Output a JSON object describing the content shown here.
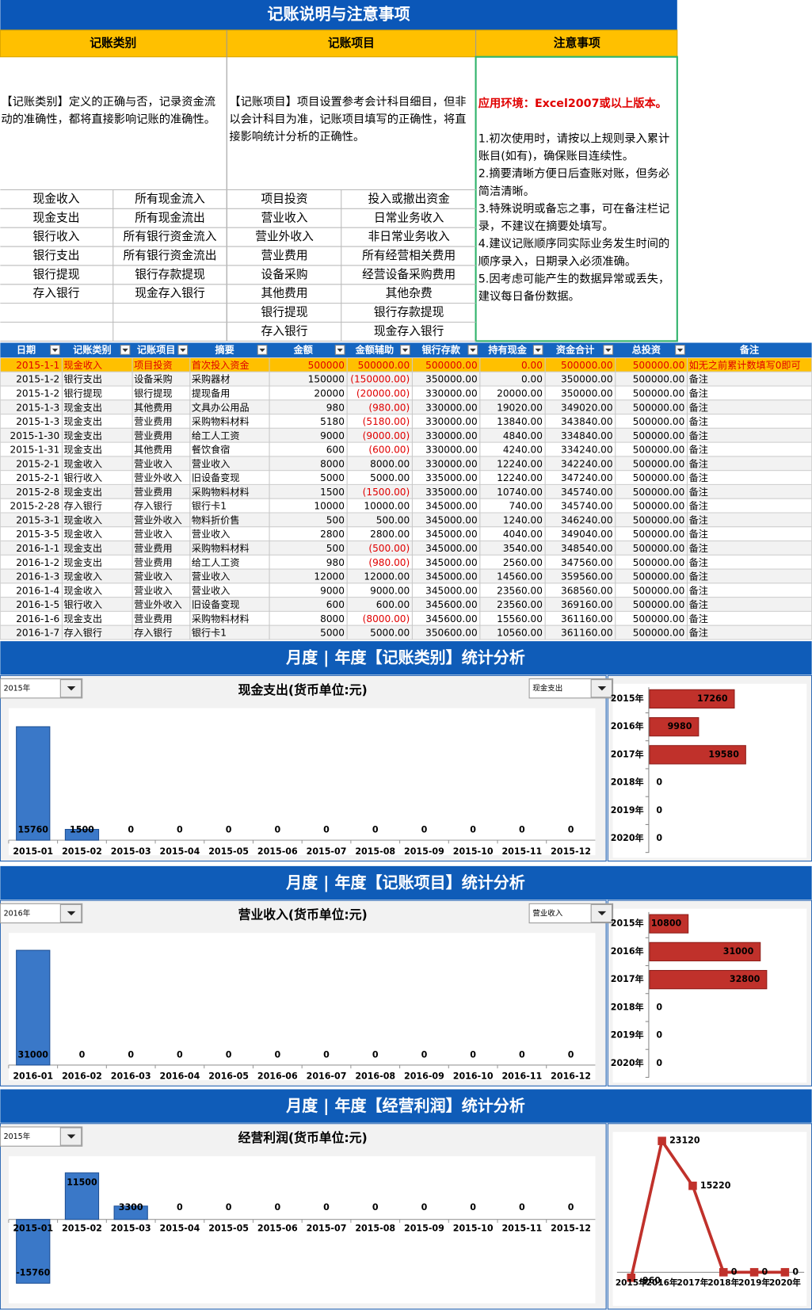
{
  "header": {
    "title": "记账说明与注意事项",
    "columns": [
      "记账类别",
      "记账项目",
      "注意事项"
    ]
  },
  "descriptions": [
    "【记账类别】定义的正确与否，记录资金流动的准确性，都将直接影响记账的准确性。",
    "【记账项目】项目设置参考会计科目细目，但非以会计科目为准，记账项目填写的正确性，将直接影响统计分析的正确性。"
  ],
  "notes": {
    "environment": "应用环境：Excel2007或以上版本。",
    "items": [
      "1.初次使用时，请按以上规则录入累计账目(如有)，确保账目连续性。",
      "2.摘要清晰方便日后查账对账，但务必简洁清晰。",
      "3.特殊说明或备忘之事，可在备注栏记录，不建议在摘要处填写。",
      "4.建议记账顺序同实际业务发生时间的顺序录入，日期录入必须准确。",
      "5.因考虑可能产生的数据异常或丢失，建议每日备份数据。"
    ]
  },
  "categories": [
    [
      "现金收入",
      "所有现金流入"
    ],
    [
      "现金支出",
      "所有现金流出"
    ],
    [
      "银行收入",
      "所有银行资金流入"
    ],
    [
      "银行支出",
      "所有银行资金流出"
    ],
    [
      "银行提现",
      "银行存款提现"
    ],
    [
      "存入银行",
      "现金存入银行"
    ]
  ],
  "items": [
    [
      "项目投资",
      "投入或撤出资金"
    ],
    [
      "营业收入",
      "日常业务收入"
    ],
    [
      "营业外收入",
      "非日常业务收入"
    ],
    [
      "营业费用",
      "所有经营相关费用"
    ],
    [
      "设备采购",
      "经营设备采购费用"
    ],
    [
      "其他费用",
      "其他杂费"
    ],
    [
      "银行提现",
      "银行存款提现"
    ],
    [
      "存入银行",
      "现金存入银行"
    ]
  ],
  "ledger": {
    "columns": [
      "日期",
      "记账类别",
      "记账项目",
      "摘要",
      "金额",
      "金额辅助",
      "银行存款",
      "持有现金",
      "资金合计",
      "总投资",
      "备注"
    ],
    "rows": [
      [
        "2015-1-1",
        "现金收入",
        "项目投资",
        "首次投入资金",
        "500000",
        "500000.00",
        "500000.00",
        "0.00",
        "500000.00",
        "500000.00",
        "如无之前累计数填写0即可"
      ],
      [
        "2015-1-2",
        "银行支出",
        "设备采购",
        "采购器材",
        "150000",
        "(150000.00)",
        "350000.00",
        "0.00",
        "350000.00",
        "500000.00",
        "备注"
      ],
      [
        "2015-1-2",
        "银行提现",
        "银行提现",
        "提现备用",
        "20000",
        "(20000.00)",
        "330000.00",
        "20000.00",
        "350000.00",
        "500000.00",
        "备注"
      ],
      [
        "2015-1-3",
        "现金支出",
        "其他费用",
        "文具办公用品",
        "980",
        "(980.00)",
        "330000.00",
        "19020.00",
        "349020.00",
        "500000.00",
        "备注"
      ],
      [
        "2015-1-3",
        "现金支出",
        "营业费用",
        "采购物料材料",
        "5180",
        "(5180.00)",
        "330000.00",
        "13840.00",
        "343840.00",
        "500000.00",
        "备注"
      ],
      [
        "2015-1-30",
        "现金支出",
        "营业费用",
        "给工人工资",
        "9000",
        "(9000.00)",
        "330000.00",
        "4840.00",
        "334840.00",
        "500000.00",
        "备注"
      ],
      [
        "2015-1-31",
        "现金支出",
        "其他费用",
        "餐饮食宿",
        "600",
        "(600.00)",
        "330000.00",
        "4240.00",
        "334240.00",
        "500000.00",
        "备注"
      ],
      [
        "2015-2-1",
        "现金收入",
        "营业收入",
        "营业收入",
        "8000",
        "8000.00",
        "330000.00",
        "12240.00",
        "342240.00",
        "500000.00",
        "备注"
      ],
      [
        "2015-2-1",
        "银行收入",
        "营业外收入",
        "旧设备变现",
        "5000",
        "5000.00",
        "335000.00",
        "12240.00",
        "347240.00",
        "500000.00",
        "备注"
      ],
      [
        "2015-2-8",
        "现金支出",
        "营业费用",
        "采购物料材料",
        "1500",
        "(1500.00)",
        "335000.00",
        "10740.00",
        "345740.00",
        "500000.00",
        "备注"
      ],
      [
        "2015-2-28",
        "存入银行",
        "存入银行",
        "银行卡1",
        "10000",
        "10000.00",
        "345000.00",
        "740.00",
        "345740.00",
        "500000.00",
        "备注"
      ],
      [
        "2015-3-1",
        "现金收入",
        "营业外收入",
        "物料折价售",
        "500",
        "500.00",
        "345000.00",
        "1240.00",
        "346240.00",
        "500000.00",
        "备注"
      ],
      [
        "2015-3-5",
        "现金收入",
        "营业收入",
        "营业收入",
        "2800",
        "2800.00",
        "345000.00",
        "4040.00",
        "349040.00",
        "500000.00",
        "备注"
      ],
      [
        "2016-1-1",
        "现金支出",
        "营业费用",
        "采购物料材料",
        "500",
        "(500.00)",
        "345000.00",
        "3540.00",
        "348540.00",
        "500000.00",
        "备注"
      ],
      [
        "2016-1-2",
        "现金支出",
        "营业费用",
        "给工人工资",
        "980",
        "(980.00)",
        "345000.00",
        "2560.00",
        "347560.00",
        "500000.00",
        "备注"
      ],
      [
        "2016-1-3",
        "现金收入",
        "营业收入",
        "营业收入",
        "12000",
        "12000.00",
        "345000.00",
        "14560.00",
        "359560.00",
        "500000.00",
        "备注"
      ],
      [
        "2016-1-4",
        "现金收入",
        "营业收入",
        "营业收入",
        "9000",
        "9000.00",
        "345000.00",
        "23560.00",
        "368560.00",
        "500000.00",
        "备注"
      ],
      [
        "2016-1-5",
        "银行收入",
        "营业外收入",
        "旧设备变现",
        "600",
        "600.00",
        "345600.00",
        "23560.00",
        "369160.00",
        "500000.00",
        "备注"
      ],
      [
        "2016-1-6",
        "现金支出",
        "营业费用",
        "采购物料材料",
        "8000",
        "(8000.00)",
        "345600.00",
        "15560.00",
        "361160.00",
        "500000.00",
        "备注"
      ],
      [
        "2016-1-7",
        "存入银行",
        "存入银行",
        "银行卡1",
        "5000",
        "5000.00",
        "350600.00",
        "10560.00",
        "361160.00",
        "500000.00",
        "备注"
      ]
    ]
  },
  "sections": [
    {
      "title": "月度 | 年度【记账类别】统计分析",
      "year": "2015年",
      "selector": "现金支出"
    },
    {
      "title": "月度 | 年度【记账项目】统计分析",
      "year": "2016年",
      "selector": "营业收入"
    },
    {
      "title": "月度 | 年度【经营利润】统计分析",
      "year": "2015年"
    }
  ],
  "chart_data": [
    {
      "type": "bar",
      "title": "现金支出(货币单位:元)",
      "categories": [
        "2015-01",
        "2015-02",
        "2015-03",
        "2015-04",
        "2015-05",
        "2015-06",
        "2015-07",
        "2015-08",
        "2015-09",
        "2015-10",
        "2015-11",
        "2015-12"
      ],
      "values": [
        15760,
        1500,
        0,
        0,
        0,
        0,
        0,
        0,
        0,
        0,
        0,
        0
      ],
      "color": "#3a78c8",
      "ylim": [
        0,
        18000
      ]
    },
    {
      "type": "hbar",
      "categories": [
        "2015年",
        "2016年",
        "2017年",
        "2018年",
        "2019年",
        "2020年"
      ],
      "values": [
        17260,
        9980,
        19580,
        0,
        0,
        0
      ],
      "color": "#c0312b",
      "xlim": [
        0,
        32000
      ]
    },
    {
      "type": "bar",
      "title": "营业收入(货币单位:元)",
      "categories": [
        "2016-01",
        "2016-02",
        "2016-03",
        "2016-04",
        "2016-05",
        "2016-06",
        "2016-07",
        "2016-08",
        "2016-09",
        "2016-10",
        "2016-11",
        "2016-12"
      ],
      "values": [
        31000,
        0,
        0,
        0,
        0,
        0,
        0,
        0,
        0,
        0,
        0,
        0
      ],
      "color": "#3a78c8",
      "ylim": [
        0,
        35000
      ]
    },
    {
      "type": "hbar",
      "categories": [
        "2015年",
        "2016年",
        "2017年",
        "2018年",
        "2019年",
        "2020年"
      ],
      "values": [
        10800,
        31000,
        32800,
        0,
        0,
        0
      ],
      "color": "#c0312b",
      "xlim": [
        0,
        44000
      ]
    },
    {
      "type": "bar",
      "title": "经营利润(货币单位:元)",
      "categories": [
        "2015-01",
        "2015-02",
        "2015-03",
        "2015-04",
        "2015-05",
        "2015-06",
        "2015-07",
        "2015-08",
        "2015-09",
        "2015-10",
        "2015-11",
        "2015-12"
      ],
      "values": [
        -15760,
        11500,
        3300,
        0,
        0,
        0,
        0,
        0,
        0,
        0,
        0,
        0
      ],
      "color": "#3a78c8",
      "ylim": [
        -17000,
        15000
      ]
    },
    {
      "type": "line",
      "categories": [
        "2015年",
        "2016年",
        "2017年",
        "2018年",
        "2019年",
        "2020年"
      ],
      "values": [
        -960,
        23120,
        15220,
        0,
        0,
        0
      ],
      "color": "#c0312b",
      "ylim": [
        -1200,
        25000
      ]
    }
  ]
}
